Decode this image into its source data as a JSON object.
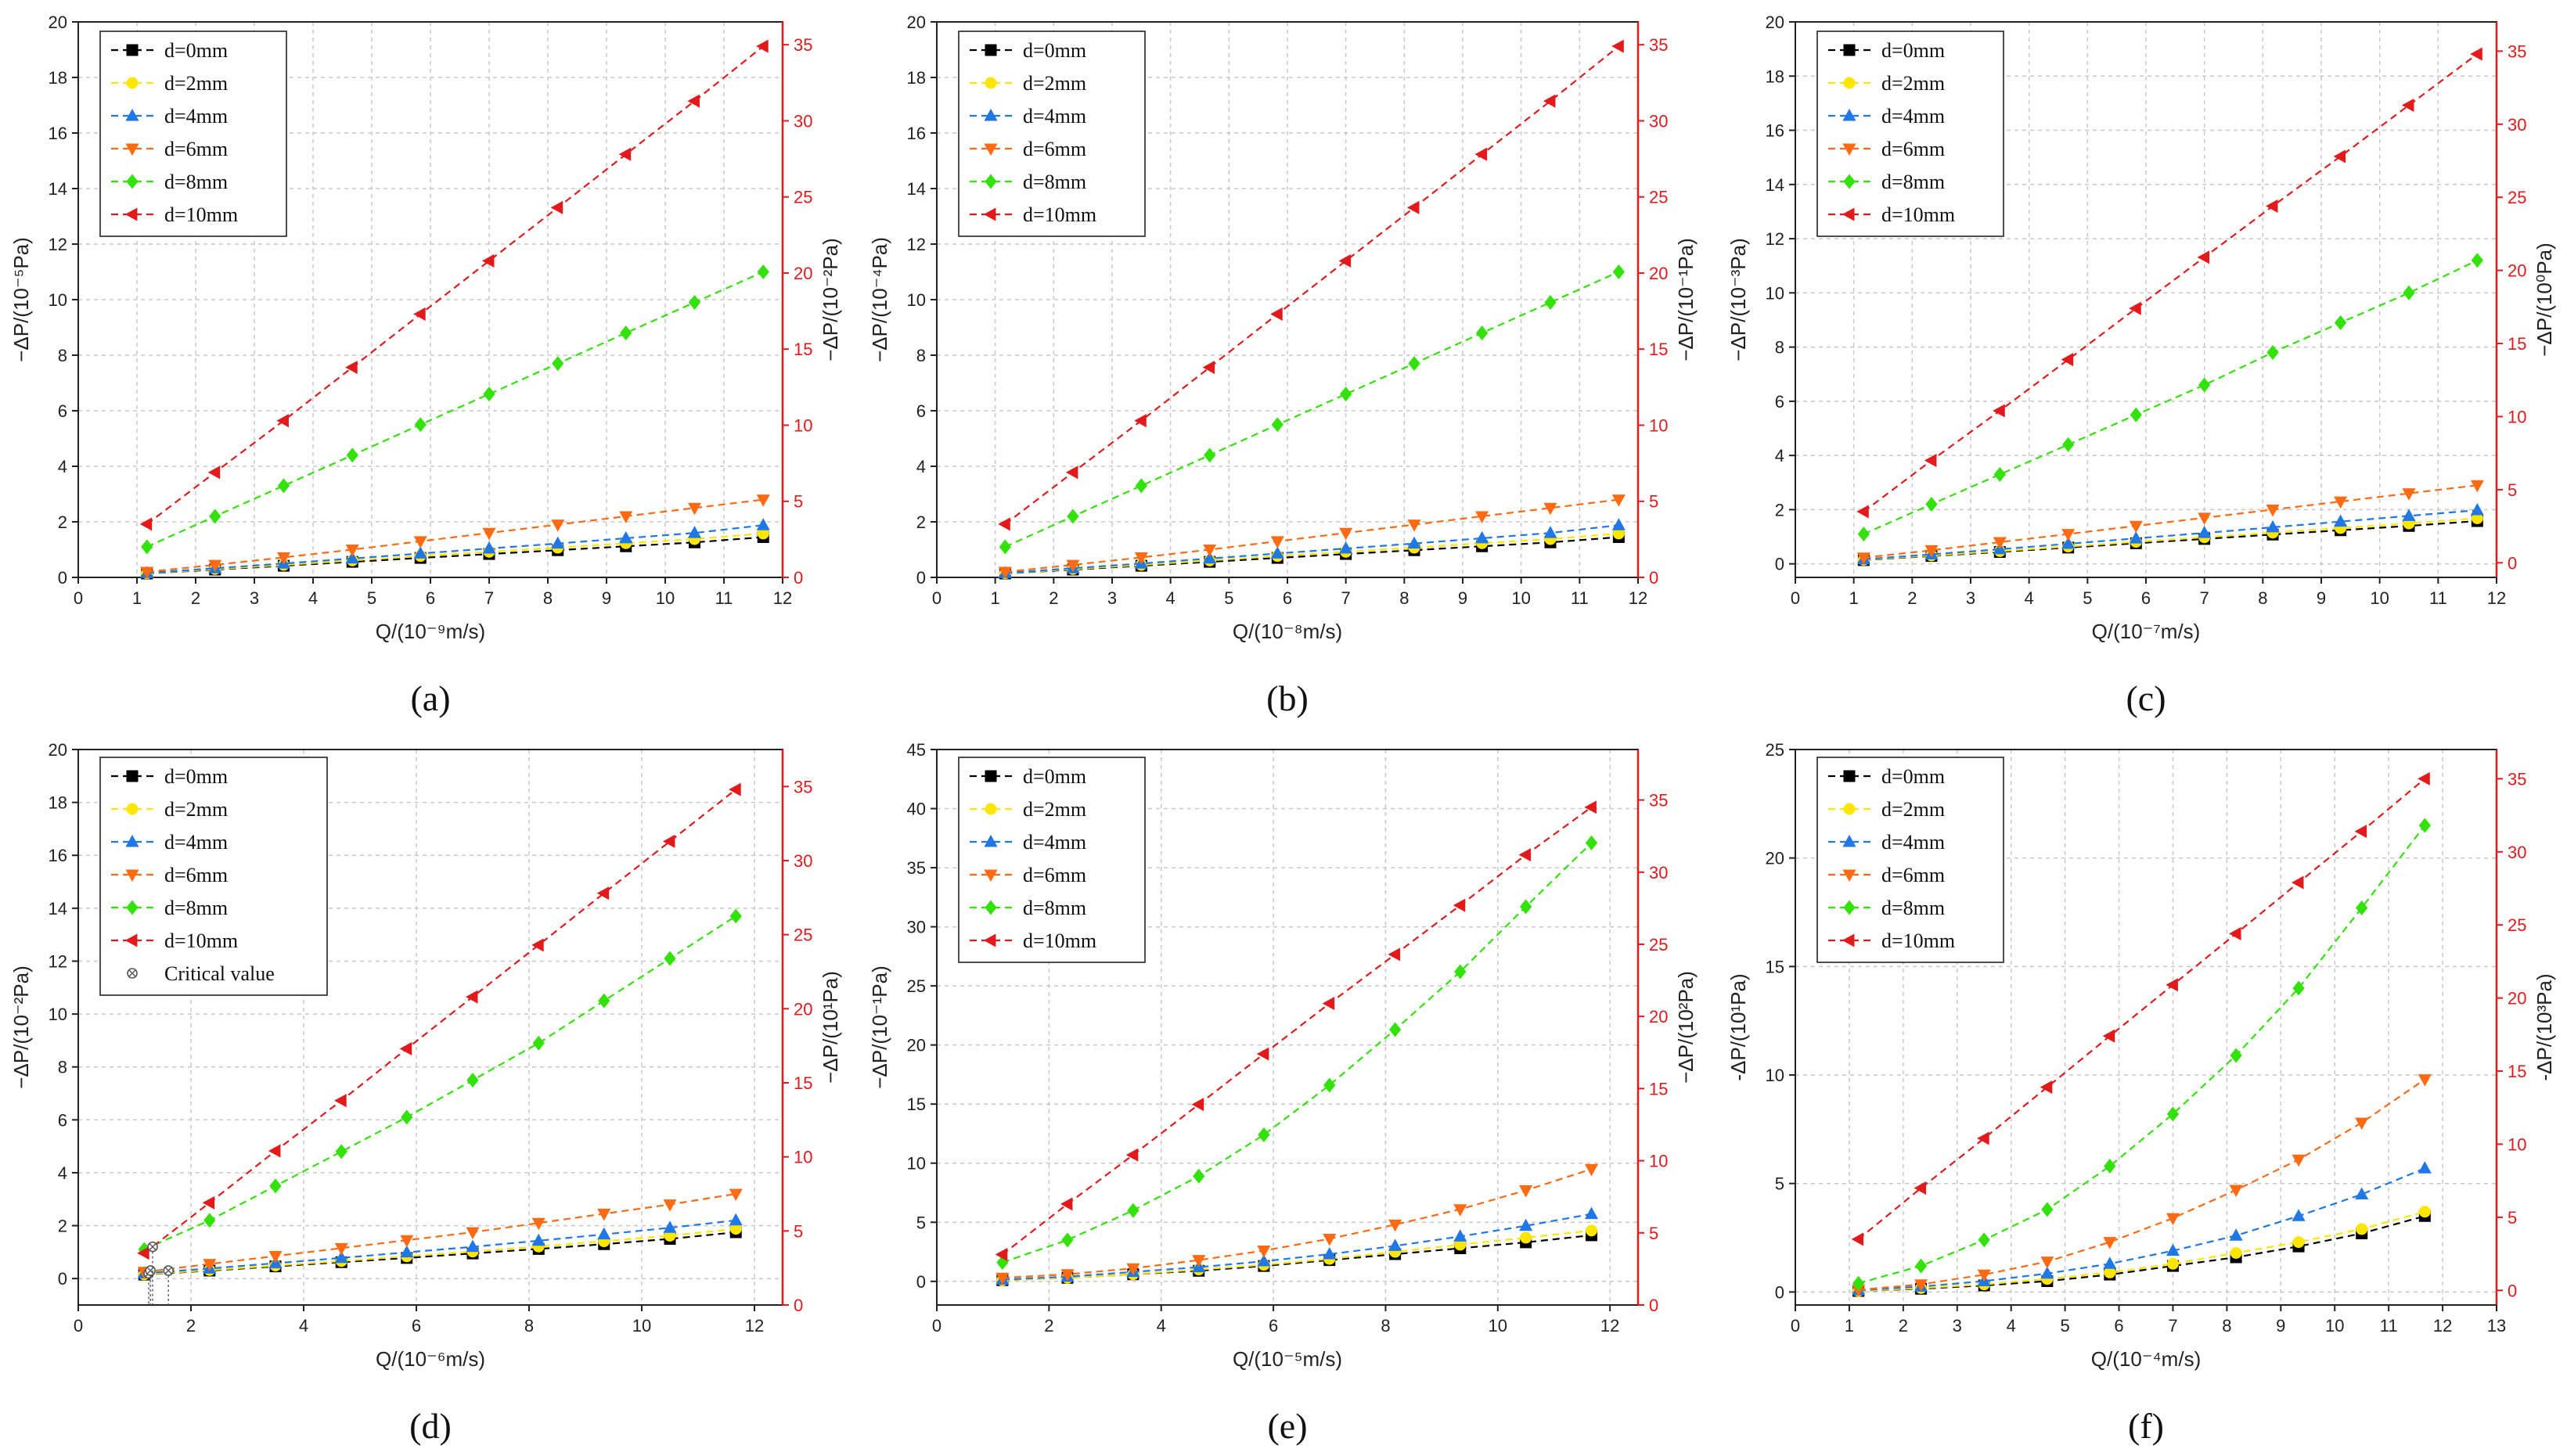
{
  "colors": {
    "d0": "#000000",
    "d2": "#ffe600",
    "d4": "#1f77e8",
    "d6": "#ff6a13",
    "d8": "#32e20a",
    "d10": "#e31a1c",
    "critical": "#555555",
    "right_axis": "#e31a1c"
  },
  "chart_data": [
    {
      "type": "line",
      "panel_label": "(a)",
      "xlabel": "Q/(10⁻⁹m/s)",
      "ylabel": "−ΔP/(10⁻⁵Pa)",
      "ylabel_right": "−ΔP/(10⁻²Pa)",
      "xlim": [
        0,
        12
      ],
      "xticks": [
        0,
        1,
        2,
        3,
        4,
        5,
        6,
        7,
        8,
        9,
        10,
        11,
        12
      ],
      "ylim": [
        0,
        20
      ],
      "yticks": [
        0,
        2,
        4,
        6,
        8,
        10,
        12,
        14,
        16,
        18,
        20
      ],
      "y2lim": [
        0,
        36.5
      ],
      "y2ticks": [
        0,
        5,
        10,
        15,
        20,
        25,
        30,
        35
      ],
      "grid": true,
      "legend_position": "top-left",
      "x": [
        1.17,
        2.33,
        3.5,
        4.67,
        5.83,
        7.0,
        8.17,
        9.33,
        10.5,
        11.67
      ],
      "series": [
        {
          "name": "d=0mm",
          "marker": "square",
          "color_key": "d0",
          "axis": "left",
          "values": [
            0.14,
            0.28,
            0.42,
            0.56,
            0.7,
            0.84,
            0.98,
            1.12,
            1.26,
            1.45
          ]
        },
        {
          "name": "d=2mm",
          "marker": "circle",
          "color_key": "d2",
          "axis": "left",
          "values": [
            0.15,
            0.3,
            0.45,
            0.61,
            0.77,
            0.92,
            1.07,
            1.23,
            1.38,
            1.58
          ]
        },
        {
          "name": "d=4mm",
          "marker": "triangle-up",
          "color_key": "d4",
          "axis": "left",
          "values": [
            0.16,
            0.33,
            0.5,
            0.68,
            0.86,
            1.04,
            1.22,
            1.41,
            1.6,
            1.88
          ]
        },
        {
          "name": "d=6mm",
          "marker": "triangle-down",
          "color_key": "d6",
          "axis": "left",
          "values": [
            0.2,
            0.45,
            0.72,
            1.0,
            1.3,
            1.6,
            1.9,
            2.2,
            2.5,
            2.8
          ]
        },
        {
          "name": "d=8mm",
          "marker": "diamond",
          "color_key": "d8",
          "axis": "left",
          "values": [
            1.1,
            2.2,
            3.3,
            4.4,
            5.5,
            6.6,
            7.7,
            8.8,
            9.9,
            11.0
          ]
        },
        {
          "name": "d=10mm",
          "marker": "triangle-left",
          "color_key": "d10",
          "axis": "right",
          "values": [
            3.5,
            6.9,
            10.3,
            13.8,
            17.3,
            20.8,
            24.3,
            27.8,
            31.3,
            34.9
          ]
        }
      ]
    },
    {
      "type": "line",
      "panel_label": "(b)",
      "xlabel": "Q/(10⁻⁸m/s)",
      "ylabel": "−ΔP/(10⁻⁴Pa)",
      "ylabel_right": "−ΔP/(10⁻¹Pa)",
      "xlim": [
        0,
        12
      ],
      "xticks": [
        0,
        1,
        2,
        3,
        4,
        5,
        6,
        7,
        8,
        9,
        10,
        11,
        12
      ],
      "ylim": [
        0,
        20
      ],
      "yticks": [
        0,
        2,
        4,
        6,
        8,
        10,
        12,
        14,
        16,
        18,
        20
      ],
      "y2lim": [
        0,
        36.5
      ],
      "y2ticks": [
        0,
        5,
        10,
        15,
        20,
        25,
        30,
        35
      ],
      "grid": true,
      "legend_position": "top-left",
      "x": [
        1.17,
        2.33,
        3.5,
        4.67,
        5.83,
        7.0,
        8.17,
        9.33,
        10.5,
        11.67
      ],
      "series": [
        {
          "name": "d=0mm",
          "marker": "square",
          "color_key": "d0",
          "axis": "left",
          "values": [
            0.14,
            0.28,
            0.42,
            0.56,
            0.7,
            0.84,
            0.98,
            1.12,
            1.26,
            1.45
          ]
        },
        {
          "name": "d=2mm",
          "marker": "circle",
          "color_key": "d2",
          "axis": "left",
          "values": [
            0.15,
            0.3,
            0.45,
            0.61,
            0.77,
            0.92,
            1.07,
            1.23,
            1.38,
            1.58
          ]
        },
        {
          "name": "d=4mm",
          "marker": "triangle-up",
          "color_key": "d4",
          "axis": "left",
          "values": [
            0.16,
            0.33,
            0.5,
            0.68,
            0.86,
            1.04,
            1.22,
            1.41,
            1.6,
            1.88
          ]
        },
        {
          "name": "d=6mm",
          "marker": "triangle-down",
          "color_key": "d6",
          "axis": "left",
          "values": [
            0.2,
            0.45,
            0.72,
            1.0,
            1.3,
            1.6,
            1.9,
            2.2,
            2.5,
            2.8
          ]
        },
        {
          "name": "d=8mm",
          "marker": "diamond",
          "color_key": "d8",
          "axis": "left",
          "values": [
            1.1,
            2.2,
            3.3,
            4.4,
            5.5,
            6.6,
            7.7,
            8.8,
            9.9,
            11.0
          ]
        },
        {
          "name": "d=10mm",
          "marker": "triangle-left",
          "color_key": "d10",
          "axis": "right",
          "values": [
            3.5,
            6.9,
            10.3,
            13.8,
            17.3,
            20.8,
            24.3,
            27.8,
            31.3,
            34.9
          ]
        }
      ]
    },
    {
      "type": "line",
      "panel_label": "(c)",
      "xlabel": "Q/(10⁻⁷m/s)",
      "ylabel": "−ΔP/(10⁻³Pa)",
      "ylabel_right": "−ΔP/(10⁰Pa)",
      "xlim": [
        0,
        12
      ],
      "xticks": [
        0,
        1,
        2,
        3,
        4,
        5,
        6,
        7,
        8,
        9,
        10,
        11,
        12
      ],
      "ylim": [
        -0.5,
        20
      ],
      "yticks": [
        0,
        2,
        4,
        6,
        8,
        10,
        12,
        14,
        16,
        18,
        20
      ],
      "y2lim": [
        -1,
        37
      ],
      "y2ticks": [
        0,
        5,
        10,
        15,
        20,
        25,
        30,
        35
      ],
      "grid": true,
      "legend_position": "top-left",
      "x": [
        1.17,
        2.33,
        3.5,
        4.67,
        5.83,
        7.0,
        8.17,
        9.33,
        10.5,
        11.67
      ],
      "series": [
        {
          "name": "d=0mm",
          "marker": "square",
          "color_key": "d0",
          "axis": "left",
          "values": [
            0.14,
            0.29,
            0.44,
            0.6,
            0.76,
            0.92,
            1.08,
            1.24,
            1.4,
            1.58
          ]
        },
        {
          "name": "d=2mm",
          "marker": "circle",
          "color_key": "d2",
          "axis": "left",
          "values": [
            0.15,
            0.31,
            0.47,
            0.64,
            0.81,
            0.98,
            1.15,
            1.32,
            1.49,
            1.68
          ]
        },
        {
          "name": "d=4mm",
          "marker": "triangle-up",
          "color_key": "d4",
          "axis": "left",
          "values": [
            0.17,
            0.35,
            0.54,
            0.74,
            0.94,
            1.14,
            1.35,
            1.56,
            1.77,
            1.98
          ]
        },
        {
          "name": "d=6mm",
          "marker": "triangle-down",
          "color_key": "d6",
          "axis": "left",
          "values": [
            0.23,
            0.5,
            0.8,
            1.1,
            1.4,
            1.7,
            2.0,
            2.3,
            2.6,
            2.9
          ]
        },
        {
          "name": "d=8mm",
          "marker": "diamond",
          "color_key": "d8",
          "axis": "left",
          "values": [
            1.1,
            2.2,
            3.3,
            4.4,
            5.5,
            6.6,
            7.8,
            8.9,
            10.0,
            11.2
          ]
        },
        {
          "name": "d=10mm",
          "marker": "triangle-left",
          "color_key": "d10",
          "axis": "right",
          "values": [
            3.5,
            7.0,
            10.4,
            13.9,
            17.4,
            20.9,
            24.4,
            27.8,
            31.3,
            34.8
          ]
        }
      ]
    },
    {
      "type": "line",
      "panel_label": "(d)",
      "xlabel": "Q/(10⁻⁶m/s)",
      "ylabel": "−ΔP/(10⁻²Pa)",
      "ylabel_right": "−ΔP/(10¹Pa)",
      "xlim": [
        0,
        12.5
      ],
      "xticks": [
        0,
        2,
        4,
        6,
        8,
        10,
        12
      ],
      "ylim": [
        -1,
        20
      ],
      "yticks": [
        0,
        2,
        4,
        6,
        8,
        10,
        12,
        14,
        16,
        18,
        20
      ],
      "y2lim": [
        0,
        37.5
      ],
      "y2ticks": [
        0,
        5,
        10,
        15,
        20,
        25,
        30,
        35
      ],
      "grid": true,
      "legend_position": "top-left",
      "x": [
        1.17,
        2.33,
        3.5,
        4.67,
        5.83,
        7.0,
        8.17,
        9.33,
        10.5,
        11.67
      ],
      "series": [
        {
          "name": "d=0mm",
          "marker": "square",
          "color_key": "d0",
          "axis": "left",
          "values": [
            0.15,
            0.3,
            0.46,
            0.62,
            0.78,
            0.95,
            1.12,
            1.3,
            1.5,
            1.75
          ]
        },
        {
          "name": "d=2mm",
          "marker": "circle",
          "color_key": "d2",
          "axis": "left",
          "values": [
            0.16,
            0.32,
            0.49,
            0.66,
            0.84,
            1.02,
            1.21,
            1.41,
            1.62,
            1.88
          ]
        },
        {
          "name": "d=4mm",
          "marker": "triangle-up",
          "color_key": "d4",
          "axis": "left",
          "values": [
            0.2,
            0.38,
            0.58,
            0.78,
            0.99,
            1.2,
            1.43,
            1.67,
            1.92,
            2.2
          ]
        },
        {
          "name": "d=6mm",
          "marker": "triangle-down",
          "color_key": "d6",
          "axis": "left",
          "values": [
            0.25,
            0.55,
            0.85,
            1.15,
            1.45,
            1.75,
            2.1,
            2.45,
            2.8,
            3.2
          ]
        },
        {
          "name": "d=8mm",
          "marker": "diamond",
          "color_key": "d8",
          "axis": "left",
          "values": [
            1.1,
            2.2,
            3.5,
            4.8,
            6.1,
            7.5,
            8.9,
            10.5,
            12.1,
            13.7
          ]
        },
        {
          "name": "d=10mm",
          "marker": "triangle-left",
          "color_key": "d10",
          "axis": "right",
          "values": [
            3.5,
            6.9,
            10.4,
            13.8,
            17.3,
            20.8,
            24.3,
            27.8,
            31.3,
            34.8
          ]
        }
      ],
      "critical_points": {
        "name": "Critical value",
        "marker": "circle-x",
        "color_key": "critical",
        "axis": "left",
        "x": [
          1.25,
          1.28,
          1.32,
          1.6
        ],
        "y": [
          0.2,
          0.3,
          1.2,
          0.3
        ]
      }
    },
    {
      "type": "line",
      "panel_label": "(e)",
      "xlabel": "Q/(10⁻⁵m/s)",
      "ylabel": "−ΔP/(10⁻¹Pa)",
      "ylabel_right": "−ΔP/(10²Pa)",
      "xlim": [
        0,
        12.5
      ],
      "xticks": [
        0,
        2,
        4,
        6,
        8,
        10,
        12
      ],
      "ylim": [
        -2,
        45
      ],
      "yticks": [
        0,
        5,
        10,
        15,
        20,
        25,
        30,
        35,
        40,
        45
      ],
      "y2lim": [
        0,
        38.5
      ],
      "y2ticks": [
        0,
        5,
        10,
        15,
        20,
        25,
        30,
        35
      ],
      "grid": true,
      "legend_position": "top-left",
      "x": [
        1.17,
        2.33,
        3.5,
        4.67,
        5.83,
        7.0,
        8.17,
        9.33,
        10.5,
        11.67
      ],
      "series": [
        {
          "name": "d=0mm",
          "marker": "square",
          "color_key": "d0",
          "axis": "left",
          "values": [
            0.1,
            0.3,
            0.6,
            0.9,
            1.3,
            1.8,
            2.3,
            2.8,
            3.3,
            3.9
          ]
        },
        {
          "name": "d=2mm",
          "marker": "circle",
          "color_key": "d2",
          "axis": "left",
          "values": [
            0.1,
            0.3,
            0.6,
            1.0,
            1.4,
            1.9,
            2.5,
            3.1,
            3.7,
            4.3
          ]
        },
        {
          "name": "d=4mm",
          "marker": "triangle-up",
          "color_key": "d4",
          "axis": "left",
          "values": [
            0.15,
            0.4,
            0.8,
            1.2,
            1.7,
            2.3,
            3.0,
            3.8,
            4.7,
            5.7
          ]
        },
        {
          "name": "d=6mm",
          "marker": "triangle-down",
          "color_key": "d6",
          "axis": "left",
          "values": [
            0.3,
            0.6,
            1.1,
            1.8,
            2.6,
            3.6,
            4.8,
            6.1,
            7.7,
            9.5
          ]
        },
        {
          "name": "d=8mm",
          "marker": "diamond",
          "color_key": "d8",
          "axis": "left",
          "values": [
            1.6,
            3.5,
            6.0,
            8.9,
            12.4,
            16.6,
            21.3,
            26.2,
            31.7,
            37.1
          ]
        },
        {
          "name": "d=10mm",
          "marker": "triangle-left",
          "color_key": "d10",
          "axis": "right",
          "values": [
            3.5,
            7.0,
            10.4,
            13.9,
            17.4,
            20.9,
            24.3,
            27.7,
            31.2,
            34.5
          ]
        }
      ]
    },
    {
      "type": "line",
      "panel_label": "(f)",
      "xlabel": "Q/(10⁻⁴m/s)",
      "ylabel": "-ΔP/(10¹Pa)",
      "ylabel_right": "-ΔP/(10³Pa)",
      "xlim": [
        0,
        13
      ],
      "xticks": [
        0,
        1,
        2,
        3,
        4,
        5,
        6,
        7,
        8,
        9,
        10,
        11,
        12,
        13
      ],
      "ylim": [
        -0.6,
        25
      ],
      "yticks": [
        0,
        5,
        10,
        15,
        20,
        25
      ],
      "y2lim": [
        -1,
        37
      ],
      "y2ticks": [
        0,
        5,
        10,
        15,
        20,
        25,
        30,
        35
      ],
      "grid": true,
      "legend_position": "top-left",
      "x": [
        1.17,
        2.33,
        3.5,
        4.67,
        5.83,
        7.0,
        8.17,
        9.33,
        10.5,
        11.67
      ],
      "series": [
        {
          "name": "d=0mm",
          "marker": "square",
          "color_key": "d0",
          "axis": "left",
          "values": [
            0.05,
            0.15,
            0.3,
            0.5,
            0.8,
            1.2,
            1.6,
            2.1,
            2.7,
            3.5
          ]
        },
        {
          "name": "d=2mm",
          "marker": "circle",
          "color_key": "d2",
          "axis": "left",
          "values": [
            0.05,
            0.18,
            0.35,
            0.6,
            0.9,
            1.3,
            1.8,
            2.3,
            2.9,
            3.7
          ]
        },
        {
          "name": "d=4mm",
          "marker": "triangle-up",
          "color_key": "d4",
          "axis": "left",
          "values": [
            0.08,
            0.25,
            0.5,
            0.85,
            1.3,
            1.9,
            2.6,
            3.5,
            4.5,
            5.7
          ]
        },
        {
          "name": "d=6mm",
          "marker": "triangle-down",
          "color_key": "d6",
          "axis": "left",
          "values": [
            0.1,
            0.35,
            0.8,
            1.4,
            2.3,
            3.4,
            4.7,
            6.1,
            7.8,
            9.8
          ]
        },
        {
          "name": "d=8mm",
          "marker": "diamond",
          "color_key": "d8",
          "axis": "left",
          "values": [
            0.4,
            1.2,
            2.4,
            3.8,
            5.8,
            8.2,
            10.9,
            14.0,
            17.7,
            21.5
          ]
        },
        {
          "name": "d=10mm",
          "marker": "triangle-left",
          "color_key": "d10",
          "axis": "right",
          "values": [
            3.5,
            7.0,
            10.4,
            13.9,
            17.4,
            20.9,
            24.4,
            27.9,
            31.4,
            35.0
          ]
        }
      ]
    }
  ]
}
